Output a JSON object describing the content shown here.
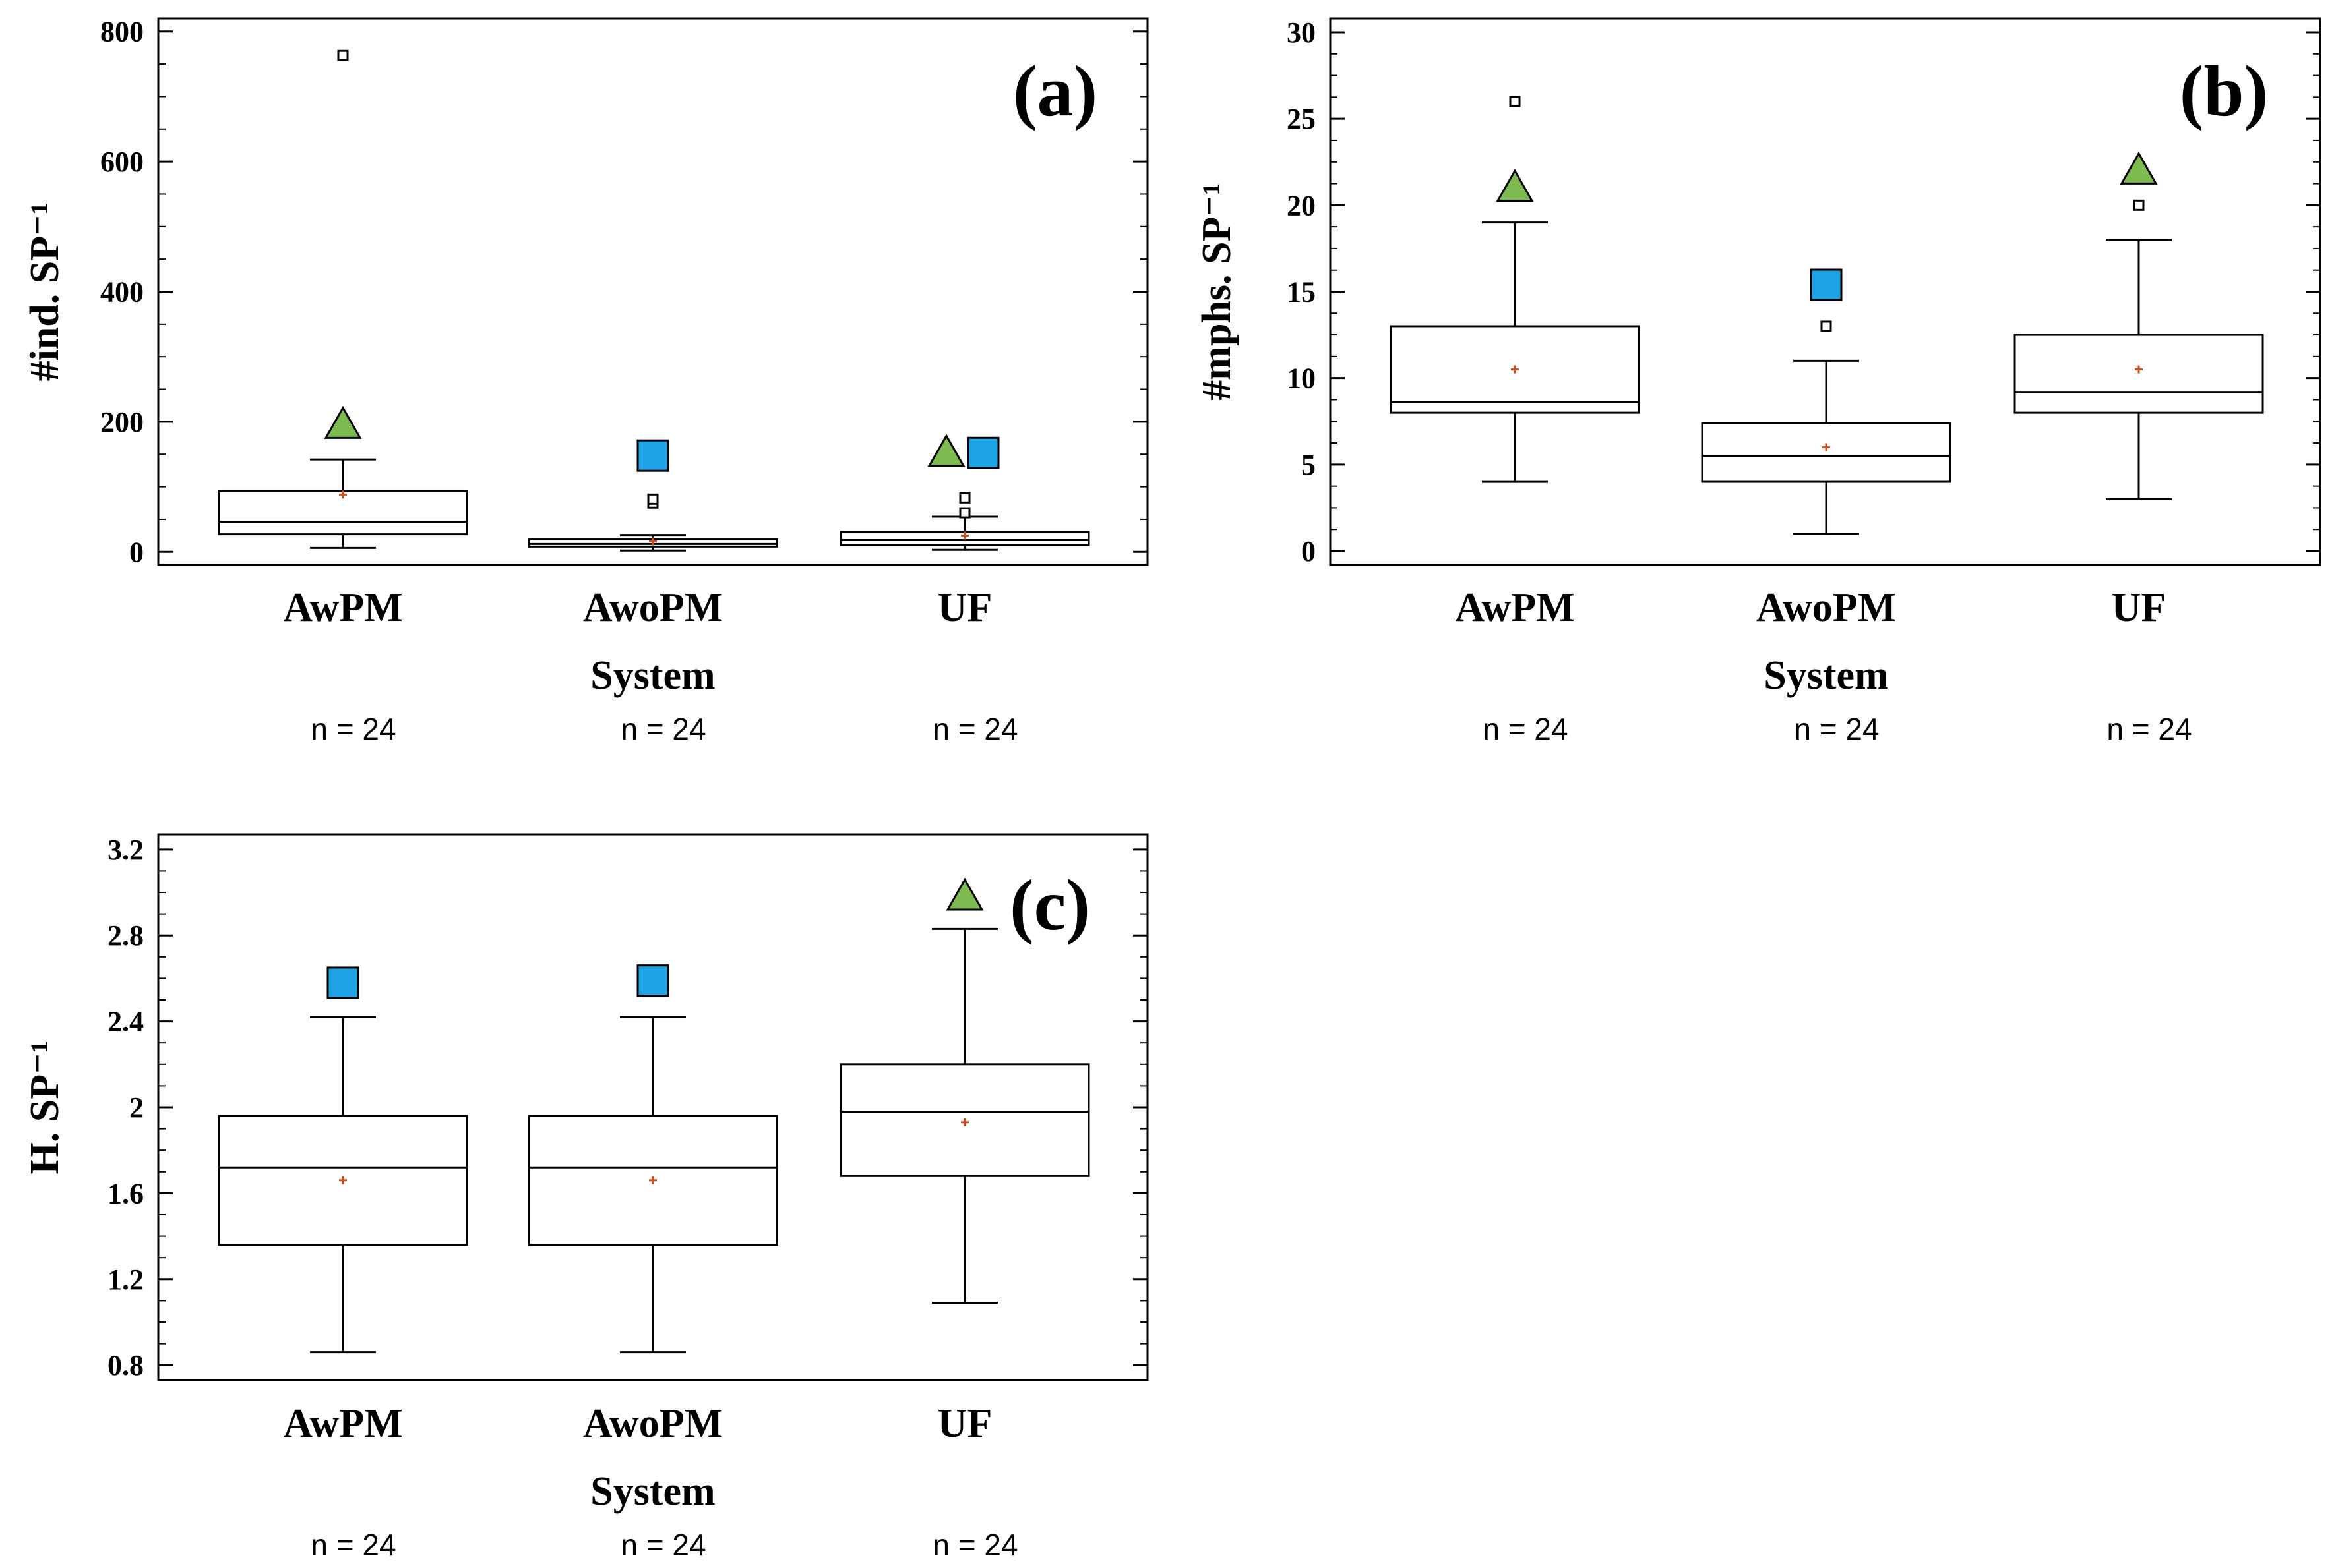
{
  "colors": {
    "triangle": "#7dba4f",
    "square": "#1ea4e6",
    "mean": "#c8501e",
    "stroke": "#000000"
  },
  "chart_data": [
    {
      "type": "box",
      "panel_label": "(a)",
      "ylabel": "#ind. SP⁻¹",
      "xlabel": "System",
      "ylim": [
        -20,
        820
      ],
      "yticks": [
        0,
        200,
        400,
        600,
        800
      ],
      "ytick_labels": [
        "0",
        "200",
        "400",
        "600",
        "800"
      ],
      "categories": [
        "AwPM",
        "AwoPM",
        "UF"
      ],
      "n_labels": [
        "n = 24",
        "n = 24",
        "n = 24"
      ],
      "boxes": [
        {
          "name": "AwPM",
          "whisker_low": 6,
          "q1": 27,
          "median": 46,
          "q3": 93,
          "whisker_high": 142,
          "mean": 88,
          "outliers": [
            763
          ],
          "triangle": 195,
          "square": null
        },
        {
          "name": "AwoPM",
          "whisker_low": 2,
          "q1": 8,
          "median": 12,
          "q3": 19,
          "whisker_high": 26,
          "mean": 16,
          "outliers": [
            75,
            81
          ],
          "triangle": null,
          "square": 148
        },
        {
          "name": "UF",
          "whisker_low": 3,
          "q1": 10,
          "median": 18,
          "q3": 31,
          "whisker_high": 54,
          "mean": 25,
          "outliers": [
            60,
            83
          ],
          "triangle": 152,
          "square": 152
        }
      ]
    },
    {
      "type": "box",
      "panel_label": "(b)",
      "ylabel": "#mphs. SP⁻¹",
      "xlabel": "System",
      "ylim": [
        -0.8,
        30.8
      ],
      "yticks": [
        0,
        5,
        10,
        15,
        20,
        25,
        30
      ],
      "ytick_labels": [
        "0",
        "5",
        "10",
        "15",
        "20",
        "25",
        "30"
      ],
      "categories": [
        "AwPM",
        "AwoPM",
        "UF"
      ],
      "n_labels": [
        "n = 24",
        "n = 24",
        "n = 24"
      ],
      "boxes": [
        {
          "name": "AwPM",
          "whisker_low": 4,
          "q1": 8,
          "median": 8.6,
          "q3": 13,
          "whisker_high": 19,
          "mean": 10.5,
          "outliers": [
            26
          ],
          "triangle": 21,
          "square": null
        },
        {
          "name": "AwoPM",
          "whisker_low": 1,
          "q1": 4,
          "median": 5.5,
          "q3": 7.4,
          "whisker_high": 11,
          "mean": 6,
          "outliers": [
            13
          ],
          "triangle": null,
          "square": 15.4
        },
        {
          "name": "UF",
          "whisker_low": 3,
          "q1": 8,
          "median": 9.2,
          "q3": 12.5,
          "whisker_high": 18,
          "mean": 10.5,
          "outliers": [
            20
          ],
          "triangle": 22,
          "square": null
        }
      ]
    },
    {
      "type": "box",
      "panel_label": "(c)",
      "ylabel": "H. SP⁻¹",
      "xlabel": "System",
      "ylim": [
        0.73,
        3.27
      ],
      "yticks": [
        0.8,
        1.2,
        1.6,
        2.0,
        2.4,
        2.8,
        3.2
      ],
      "ytick_labels": [
        "0.8",
        "1.2",
        "1.6",
        "2",
        "2.4",
        "2.8",
        "3.2"
      ],
      "categories": [
        "AwPM",
        "AwoPM",
        "UF"
      ],
      "n_labels": [
        "n = 24",
        "n = 24",
        "n = 24"
      ],
      "boxes": [
        {
          "name": "AwPM",
          "whisker_low": 0.86,
          "q1": 1.36,
          "median": 1.72,
          "q3": 1.96,
          "whisker_high": 2.42,
          "mean": 1.66,
          "outliers": [],
          "triangle": null,
          "square": 2.58
        },
        {
          "name": "AwoPM",
          "whisker_low": 0.86,
          "q1": 1.36,
          "median": 1.72,
          "q3": 1.96,
          "whisker_high": 2.42,
          "mean": 1.66,
          "outliers": [],
          "triangle": null,
          "square": 2.59
        },
        {
          "name": "UF",
          "whisker_low": 1.09,
          "q1": 1.68,
          "median": 1.98,
          "q3": 2.2,
          "whisker_high": 2.83,
          "mean": 1.93,
          "outliers": [],
          "triangle": 2.98,
          "square": null
        }
      ]
    }
  ]
}
